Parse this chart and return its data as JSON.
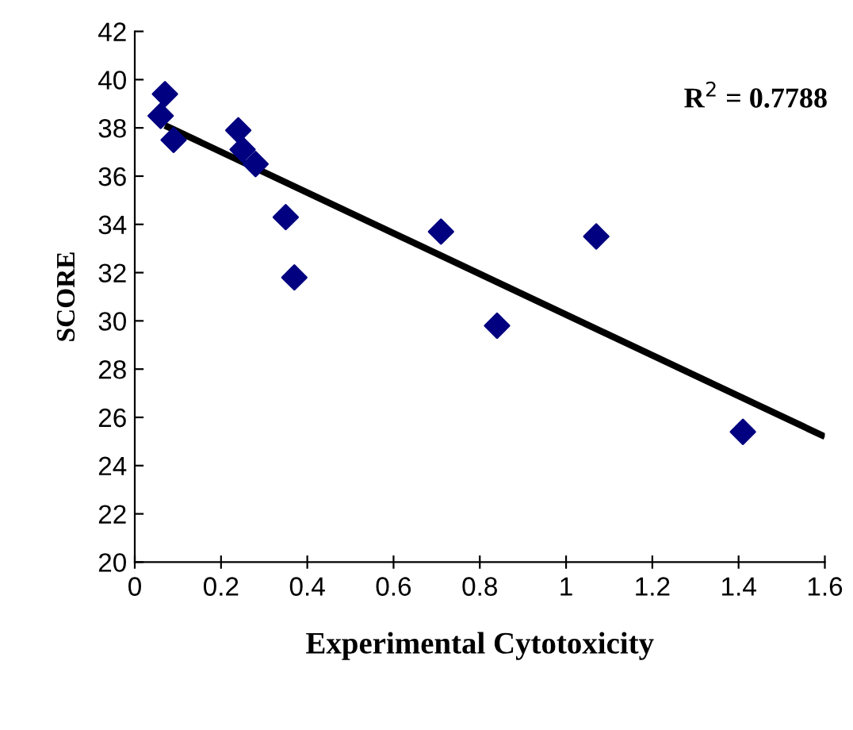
{
  "chart_data": {
    "type": "scatter",
    "xlabel": "Experimental Cytotoxicity",
    "ylabel": "SCORE",
    "annotations": [
      "R$^{2}$ = 0.7788"
    ],
    "grid": false,
    "legend": false,
    "xlim": [
      0,
      1.6
    ],
    "xticks": [
      0,
      0.2,
      0.4,
      0.6,
      0.8,
      1,
      1.2,
      1.4,
      1.6
    ],
    "ylim": [
      20,
      42
    ],
    "yticks": [
      20,
      22,
      24,
      26,
      28,
      30,
      32,
      34,
      36,
      38,
      40,
      42
    ],
    "series": [
      {
        "marker": "diamond",
        "color": "#000080",
        "x": [
          0.07,
          0.06,
          0.09,
          0.24,
          0.25,
          0.28,
          0.35,
          0.37,
          0.71,
          0.84,
          1.07,
          1.41
        ],
        "values": [
          39.4,
          38.5,
          37.5,
          37.9,
          37.1,
          36.5,
          34.3,
          31.8,
          33.7,
          29.8,
          33.5,
          25.4
        ]
      },
      {
        "type": "line",
        "marker": "none",
        "color": "#000000",
        "x": [
          0.07,
          1.6
        ],
        "values": [
          38.1,
          25.2
        ]
      }
    ]
  }
}
